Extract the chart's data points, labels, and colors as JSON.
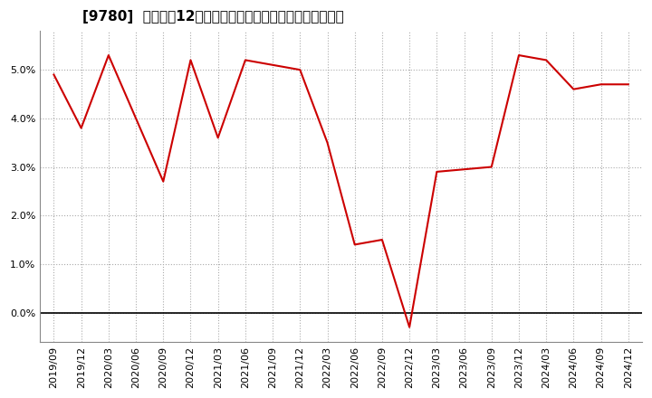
{
  "title": "[9780]  売上高の12か月移動合計の対前年同期増減率の推移",
  "x_labels": [
    "2019/09",
    "2019/12",
    "2020/03",
    "2020/06",
    "2020/09",
    "2020/12",
    "2021/03",
    "2021/06",
    "2021/09",
    "2021/12",
    "2022/03",
    "2022/06",
    "2022/09",
    "2022/12",
    "2023/03",
    "2023/06",
    "2023/09",
    "2023/12",
    "2024/03",
    "2024/06",
    "2024/09",
    "2024/12"
  ],
  "values": [
    0.049,
    0.038,
    0.053,
    0.04,
    0.027,
    0.052,
    0.036,
    0.052,
    0.051,
    0.05,
    0.035,
    0.014,
    0.015,
    -0.003,
    0.029,
    0.0295,
    0.03,
    0.053,
    0.052,
    0.046,
    0.047,
    0.047
  ],
  "line_color": "#cc0000",
  "background_color": "#ffffff",
  "plot_bg_color": "#ffffff",
  "grid_color": "#aaaaaa",
  "ylim": [
    -0.006,
    0.058
  ],
  "yticks": [
    0.0,
    0.01,
    0.02,
    0.03,
    0.04,
    0.05
  ],
  "title_fontsize": 11,
  "tick_fontsize": 8,
  "linewidth": 1.5
}
